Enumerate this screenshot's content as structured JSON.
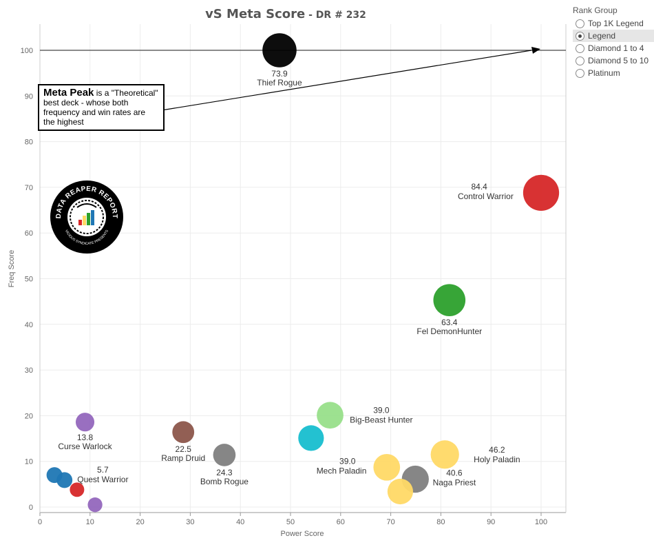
{
  "title": {
    "main": "vS Meta Score",
    "sub": " - DR # 232"
  },
  "legend": {
    "title": "Rank Group",
    "options": [
      {
        "label": "Top 1K Legend",
        "selected": false
      },
      {
        "label": "Legend",
        "selected": true
      },
      {
        "label": "Diamond 1 to 4",
        "selected": false
      },
      {
        "label": "Diamond 5 to 10",
        "selected": false
      },
      {
        "label": "Platinum",
        "selected": false
      }
    ]
  },
  "annotation": {
    "bold": "Meta Peak",
    "text": " is a \"Theoretical\" best deck - whose both frequency and win rates are the highest"
  },
  "logo": {
    "text_top": "DATA REAPER REPORT",
    "text_bottom": "VICIOUS SYNDICATE PRESENTS"
  },
  "chart_data": {
    "type": "scatter",
    "xlabel": "Power Score",
    "ylabel": "Freq Score",
    "xlim": [
      0,
      105
    ],
    "ylim": [
      -1,
      105
    ],
    "xticks": [
      0,
      10,
      20,
      30,
      40,
      50,
      60,
      70,
      80,
      90,
      100
    ],
    "yticks": [
      0,
      10,
      20,
      30,
      40,
      50,
      60,
      70,
      80,
      90,
      100
    ],
    "grid": true,
    "reference_line": {
      "y": 100
    },
    "points": [
      {
        "x": 47.8,
        "y": 100,
        "size": 73.9,
        "color": "#000000",
        "score": "73.9",
        "name": "Thief Rogue",
        "label_pos": "below"
      },
      {
        "x": 100,
        "y": 68.8,
        "size": 84.4,
        "color": "#d62728",
        "score": "84.4",
        "name": "Control Warrior",
        "label_pos": "left"
      },
      {
        "x": 81.7,
        "y": 45.3,
        "size": 63.4,
        "color": "#2ca02c",
        "score": "63.4",
        "name": "Fel DemonHunter",
        "label_pos": "below"
      },
      {
        "x": 57.9,
        "y": 20.1,
        "size": 39.0,
        "color": "#98df8a",
        "score": "39.0",
        "name": "Big-Beast Hunter",
        "label_pos": "right"
      },
      {
        "x": 54.1,
        "y": 15.1,
        "size": 35,
        "color": "#17becf",
        "score": "",
        "name": "",
        "label_pos": "none"
      },
      {
        "x": 9.0,
        "y": 18.6,
        "size": 13.8,
        "color": "#9467bd",
        "score": "13.8",
        "name": "Curse Warlock",
        "label_pos": "below"
      },
      {
        "x": 28.6,
        "y": 16.4,
        "size": 22.5,
        "color": "#8c564b",
        "score": "22.5",
        "name": "Ramp Druid",
        "label_pos": "below"
      },
      {
        "x": 36.8,
        "y": 11.4,
        "size": 24.3,
        "color": "#7f7f7f",
        "score": "24.3",
        "name": "Bomb Rogue",
        "label_pos": "below"
      },
      {
        "x": 80.8,
        "y": 11.5,
        "size": 46.2,
        "color": "#ffd966",
        "score": "46.2",
        "name": "Holy Paladin",
        "label_pos": "right"
      },
      {
        "x": 69.2,
        "y": 8.7,
        "size": 39.0,
        "color": "#ffd966",
        "score": "39.0",
        "name": "Mech Paladin",
        "label_pos": "left"
      },
      {
        "x": 74.9,
        "y": 6.1,
        "size": 40.6,
        "color": "#7f7f7f",
        "score": "40.6",
        "name": "Naga Priest",
        "label_pos": "belowright"
      },
      {
        "x": 71.9,
        "y": 3.4,
        "size": 35,
        "color": "#ffd966",
        "score": "",
        "name": "",
        "label_pos": "none"
      },
      {
        "x": 2.9,
        "y": 7.0,
        "size": 8,
        "color": "#1f77b4",
        "score": "",
        "name": "",
        "label_pos": "none"
      },
      {
        "x": 4.9,
        "y": 5.9,
        "size": 8,
        "color": "#1f77b4",
        "score": "",
        "name": "",
        "label_pos": "none"
      },
      {
        "x": 7.4,
        "y": 3.8,
        "size": 5.7,
        "color": "#d62728",
        "score": "5.7",
        "name": "Quest Warrior",
        "label_pos": "aboveright"
      },
      {
        "x": 11.0,
        "y": 0.5,
        "size": 6,
        "color": "#9467bd",
        "score": "",
        "name": "",
        "label_pos": "none"
      }
    ]
  }
}
